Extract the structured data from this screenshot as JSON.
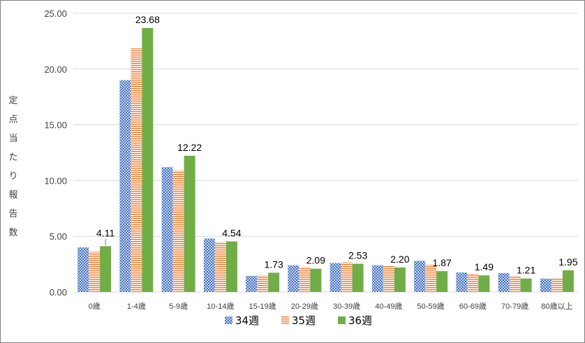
{
  "chart_data": {
    "type": "bar",
    "ylabel": "定点当たり報告数",
    "ylim": [
      0,
      25
    ],
    "yticks": [
      "0.00",
      "5.00",
      "10.00",
      "15.00",
      "20.00",
      "25.00"
    ],
    "grid": true,
    "legend_position": "bottom",
    "categories": [
      "0歳",
      "1-4歳",
      "5-9歳",
      "10-14歳",
      "15-19歳",
      "20-29歳",
      "30-39歳",
      "40-49歳",
      "50-59歳",
      "60-69歳",
      "70-79歳",
      "80歳以上"
    ],
    "series": [
      {
        "name": "34週",
        "color": "#4472c4",
        "pattern": "checker",
        "values": [
          4.0,
          19.0,
          11.2,
          4.8,
          1.45,
          2.4,
          2.6,
          2.4,
          2.8,
          1.75,
          1.7,
          1.2
        ]
      },
      {
        "name": "35週",
        "color": "#ed7d31",
        "pattern": "stripes",
        "values": [
          3.6,
          21.85,
          10.9,
          4.5,
          1.5,
          2.25,
          2.65,
          2.35,
          2.45,
          1.65,
          1.4,
          1.2
        ]
      },
      {
        "name": "36週",
        "color": "#70ad47",
        "pattern": "solid",
        "values": [
          4.11,
          23.68,
          12.22,
          4.54,
          1.73,
          2.09,
          2.53,
          2.2,
          1.87,
          1.49,
          1.21,
          1.95
        ]
      }
    ],
    "data_labels": [
      "4.11",
      "23.68",
      "12.22",
      "4.54",
      "1.73",
      "2.09",
      "2.53",
      "2.20",
      "1.87",
      "1.49",
      "1.21",
      "1.95"
    ]
  }
}
